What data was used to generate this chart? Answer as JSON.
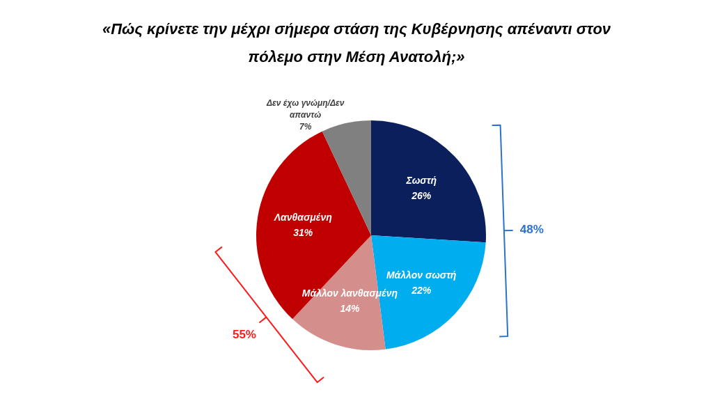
{
  "chart_data": {
    "type": "pie",
    "title": "«Πώς κρίνετε την μέχρι σήμερα στάση της Κυβέρνησης απέναντι στον πόλεμο στην Μέση Ανατολή;»",
    "categories": [
      "Σωστή",
      "Μάλλον σωστή",
      "Μάλλον λανθασμένη",
      "Λανθασμένη",
      "Δεν έχω γνώμη/Δεν απαντώ"
    ],
    "values": [
      26,
      22,
      14,
      31,
      7
    ],
    "value_labels": [
      "26%",
      "22%",
      "14%",
      "31%",
      "7%"
    ],
    "colors": [
      "#0a1f5c",
      "#00adef",
      "#d48f8c",
      "#c00000",
      "#808080"
    ],
    "annotations": [
      "48%",
      "55%"
    ]
  }
}
